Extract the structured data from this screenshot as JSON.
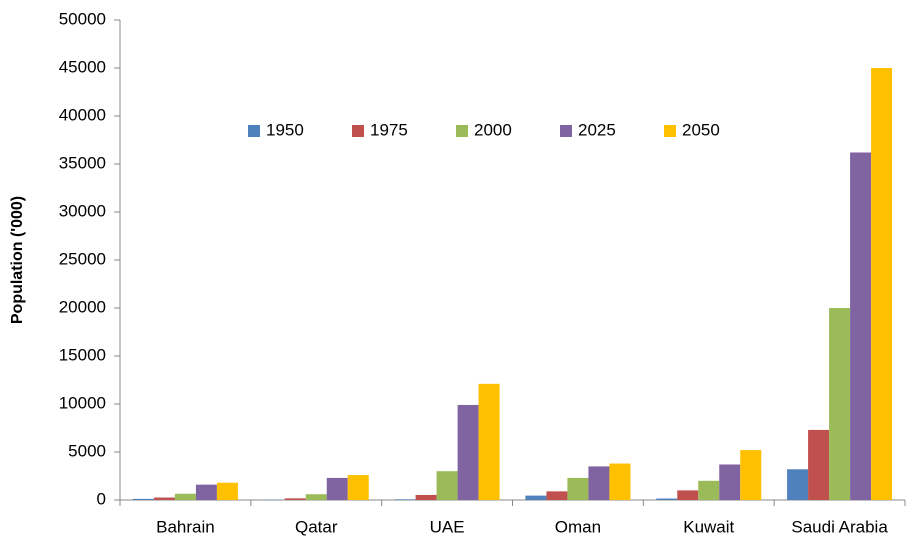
{
  "chart_data": {
    "type": "bar",
    "y_label": "Population ('000)",
    "categories": [
      "Bahrain",
      "Qatar",
      "UAE",
      "Oman",
      "Kuwait",
      "Saudi Arabia"
    ],
    "series": [
      {
        "name": "1950",
        "color": "#4f81bd",
        "values": [
          116,
          25,
          70,
          456,
          152,
          3200
        ]
      },
      {
        "name": "1975",
        "color": "#c0504d",
        "values": [
          256,
          171,
          530,
          900,
          1000,
          7300
        ]
      },
      {
        "name": "2000",
        "color": "#9bbb59",
        "values": [
          650,
          600,
          3000,
          2300,
          2000,
          20000
        ]
      },
      {
        "name": "2025",
        "color": "#8064a2",
        "values": [
          1600,
          2300,
          9900,
          3500,
          3700,
          36200
        ]
      },
      {
        "name": "2050",
        "color": "#ffc000",
        "values": [
          1800,
          2600,
          12100,
          3800,
          5200,
          45000
        ]
      }
    ],
    "ylim": [
      0,
      50000
    ],
    "yticks": [
      0,
      5000,
      10000,
      15000,
      20000,
      25000,
      30000,
      35000,
      40000,
      45000,
      50000
    ],
    "grid": false,
    "legend": "top"
  }
}
